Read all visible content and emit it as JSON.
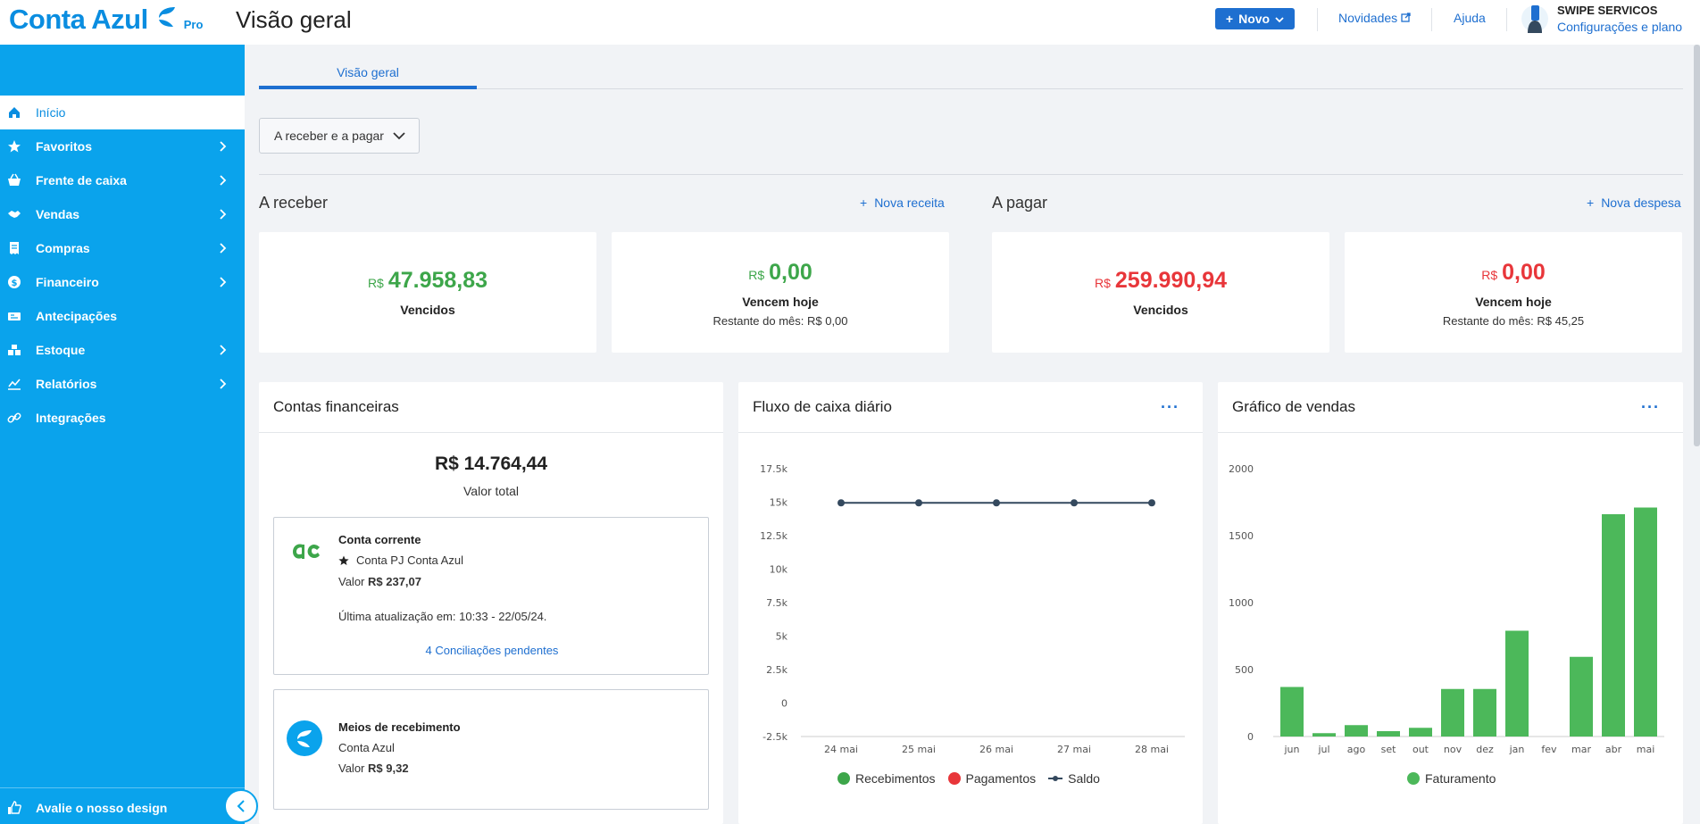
{
  "header": {
    "logo_text": "Conta Azul",
    "logo_tier": "Pro",
    "page_title": "Visão geral",
    "new_button": "Novo",
    "news_link": "Novidades",
    "help_link": "Ajuda",
    "company_name": "SWIPE SERVICOS",
    "settings_link": "Configurações e plano"
  },
  "sidebar": {
    "items": [
      {
        "label": "Início",
        "icon": "home-icon",
        "active": true,
        "has_submenu": false
      },
      {
        "label": "Favoritos",
        "icon": "star-icon",
        "active": false,
        "has_submenu": true
      },
      {
        "label": "Frente de caixa",
        "icon": "basket-icon",
        "active": false,
        "has_submenu": true
      },
      {
        "label": "Vendas",
        "icon": "handshake-icon",
        "active": false,
        "has_submenu": true
      },
      {
        "label": "Compras",
        "icon": "receipt-icon",
        "active": false,
        "has_submenu": true
      },
      {
        "label": "Financeiro",
        "icon": "money-icon",
        "active": false,
        "has_submenu": true
      },
      {
        "label": "Antecipações",
        "icon": "cash-icon",
        "active": false,
        "has_submenu": false
      },
      {
        "label": "Estoque",
        "icon": "boxes-icon",
        "active": false,
        "has_submenu": true
      },
      {
        "label": "Relatórios",
        "icon": "chart-icon",
        "active": false,
        "has_submenu": true
      },
      {
        "label": "Integrações",
        "icon": "link-icon",
        "active": false,
        "has_submenu": false
      }
    ],
    "feedback_label": "Avalie o nosso design"
  },
  "tabs": [
    {
      "label": "Visão geral",
      "active": true
    }
  ],
  "filter": {
    "label": "A receber e a pagar"
  },
  "receivable": {
    "title": "A receber",
    "action": "Nova receita",
    "currency": "R$",
    "overdue_value": "47.958,83",
    "overdue_label": "Vencidos",
    "today_value": "0,00",
    "today_label": "Vencem hoje",
    "month_remaining": "Restante do mês: R$ 0,00"
  },
  "payable": {
    "title": "A pagar",
    "action": "Nova despesa",
    "currency": "R$",
    "overdue_value": "259.990,94",
    "overdue_label": "Vencidos",
    "today_value": "0,00",
    "today_label": "Vencem hoje",
    "month_remaining": "Restante do mês: R$ 45,25"
  },
  "accounts": {
    "title": "Contas financeiras",
    "total_value": "R$ 14.764,44",
    "total_label": "Valor total",
    "checking": {
      "title": "Conta corrente",
      "name": "Conta PJ Conta Azul",
      "value_prefix": "Valor",
      "value": "R$ 237,07",
      "last_update": "Última atualização em: 10:33 - 22/05/24.",
      "pending_link": "4 Conciliações pendentes"
    },
    "receiving": {
      "title": "Meios de recebimento",
      "name": "Conta Azul",
      "value_prefix": "Valor",
      "value": "R$ 9,32"
    }
  },
  "cashflow": {
    "title": "Fluxo de caixa diário",
    "menu": "···"
  },
  "sales": {
    "title": "Gráfico de vendas",
    "menu": "···"
  },
  "colors": {
    "primary": "#0aa3ec",
    "accent": "#1e6fd0",
    "green": "#3da64a",
    "red": "#e8363a",
    "saldo": "#34495e"
  },
  "chart_data": [
    {
      "type": "line",
      "title": "Fluxo de caixa diário",
      "categories": [
        "24 mai",
        "25 mai",
        "26 mai",
        "27 mai",
        "28 mai"
      ],
      "yticks": [
        "17.5k",
        "15k",
        "12.5k",
        "10k",
        "7.5k",
        "5k",
        "2.5k",
        "0",
        "-2.5k"
      ],
      "ylim": [
        -2500,
        17500
      ],
      "series": [
        {
          "name": "Recebimentos",
          "color": "#3da64a",
          "values": [
            0,
            0,
            0,
            0,
            0
          ]
        },
        {
          "name": "Pagamentos",
          "color": "#e8363a",
          "values": [
            0,
            0,
            0,
            0,
            0
          ]
        },
        {
          "name": "Saldo",
          "color": "#34495e",
          "values": [
            14950,
            14950,
            14950,
            14950,
            14950
          ]
        }
      ],
      "legend": "bottom"
    },
    {
      "type": "bar",
      "title": "Gráfico de vendas",
      "categories": [
        "jun",
        "jul",
        "ago",
        "set",
        "out",
        "nov",
        "dez",
        "jan",
        "fev",
        "mar",
        "abr",
        "mai"
      ],
      "yticks": [
        "2000",
        "1500",
        "1000",
        "500",
        "0"
      ],
      "ylim": [
        0,
        2000
      ],
      "series": [
        {
          "name": "Faturamento",
          "color": "#4cb85a",
          "values": [
            370,
            25,
            85,
            40,
            65,
            355,
            355,
            790,
            0,
            595,
            1660,
            1710
          ]
        }
      ],
      "legend": "bottom"
    }
  ]
}
